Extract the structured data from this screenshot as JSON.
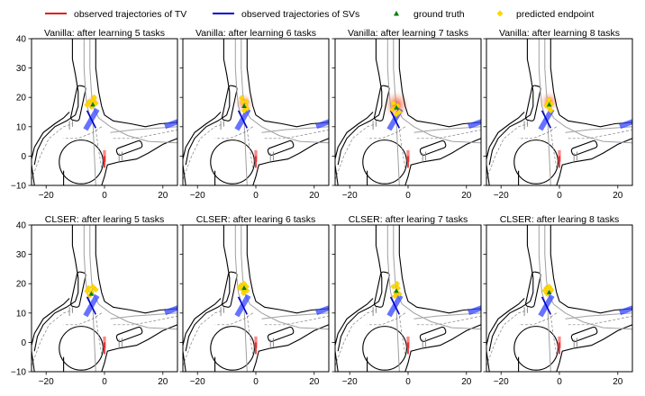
{
  "legend": {
    "items": [
      {
        "label": "observed trajectories of TV",
        "marker": "line",
        "color": "#e41a1c"
      },
      {
        "label": "observed trajectories of SVs",
        "marker": "line",
        "color": "#0000cc"
      },
      {
        "label": "ground truth",
        "marker": "triangle",
        "color": "#008000"
      },
      {
        "label": "predicted endpoint",
        "marker": "diamond",
        "color": "#ffd700"
      }
    ]
  },
  "colors": {
    "road": "#000000",
    "lane": "#a0a0a0",
    "dashed_lane": "#808080",
    "tv_box": "#ff6666",
    "sv_box": "#3344ff",
    "heat": "#ff3300"
  },
  "chart_data": {
    "type": "scatter",
    "xlim": [
      -25,
      25
    ],
    "ylim": [
      -10,
      40
    ],
    "xticks": [
      "-20",
      "0",
      "20"
    ],
    "yticks": [
      "-10",
      "0",
      "10",
      "20",
      "30",
      "40"
    ],
    "tv_vehicle": {
      "center": [
        0,
        0
      ],
      "heading_deg": 90
    },
    "sv_vehicles": [
      {
        "center": [
          -4.5,
          12.5
        ],
        "heading_deg": 60
      },
      {
        "center": [
          24.5,
          11.5
        ],
        "heading_deg": 20
      }
    ],
    "panels": [
      {
        "title": "Vanilla: after learning 5 tasks",
        "ground_truth": [
          -4,
          17.5
        ],
        "predicted": [
          [
            -5.2,
            18.5
          ],
          [
            -4.0,
            19.0
          ],
          [
            -3.0,
            18.0
          ],
          [
            -4.5,
            16.8
          ],
          [
            -6.0,
            17.5
          ],
          [
            -3.5,
            20.0
          ]
        ],
        "heat": 0.25
      },
      {
        "title": "Vanilla: after learning 6 tasks",
        "ground_truth": [
          -4,
          17.0
        ],
        "predicted": [
          [
            -4.5,
            18.5
          ],
          [
            -3.5,
            17.0
          ],
          [
            -4.0,
            15.5
          ],
          [
            -3.0,
            16.2
          ],
          [
            -4.8,
            19.8
          ],
          [
            -3.2,
            18.6
          ]
        ],
        "heat": 0.45
      },
      {
        "title": "Vanilla: after learning 7 tasks",
        "ground_truth": [
          -4,
          16.5
        ],
        "predicted": [
          [
            -5.0,
            18.0
          ],
          [
            -4.2,
            16.5
          ],
          [
            -3.0,
            15.0
          ],
          [
            -4.0,
            14.2
          ],
          [
            -5.4,
            15.8
          ],
          [
            -3.6,
            17.2
          ]
        ],
        "heat": 0.85
      },
      {
        "title": "Vanilla: after learning 8 tasks",
        "ground_truth": [
          -3.5,
          17.5
        ],
        "predicted": [
          [
            -4.0,
            18.0
          ],
          [
            -3.5,
            16.5
          ],
          [
            -3.0,
            15.5
          ],
          [
            -4.5,
            17.2
          ],
          [
            -2.8,
            17.8
          ],
          [
            -3.6,
            19.2
          ]
        ],
        "heat": 0.5
      },
      {
        "title": "CLSER: after learing 5 tasks",
        "ground_truth": [
          -4.5,
          16.5
        ],
        "predicted": [
          [
            -5.5,
            18.5
          ],
          [
            -4.0,
            19.0
          ],
          [
            -3.0,
            18.0
          ],
          [
            -4.5,
            17.2
          ],
          [
            -6.0,
            17.5
          ],
          [
            -5.0,
            16.0
          ]
        ],
        "heat": 0.0
      },
      {
        "title": "CLSER: after learing 6 tasks",
        "ground_truth": [
          -4,
          18.5
        ],
        "predicted": [
          [
            -5.0,
            19.5
          ],
          [
            -4.0,
            20.0
          ],
          [
            -3.2,
            19.0
          ],
          [
            -4.5,
            18.0
          ],
          [
            -5.6,
            18.6
          ],
          [
            -3.0,
            17.6
          ],
          [
            -4.2,
            16.8
          ]
        ],
        "heat": 0.0
      },
      {
        "title": "CLSER: after learing 7 tasks",
        "ground_truth": [
          -4,
          17.5
        ],
        "predicted": [
          [
            -5.0,
            19.0
          ],
          [
            -3.5,
            18.5
          ],
          [
            -4.2,
            17.0
          ],
          [
            -3.0,
            16.5
          ],
          [
            -4.5,
            15.8
          ],
          [
            -3.8,
            20.0
          ]
        ],
        "heat": 0.0
      },
      {
        "title": "CLSER: after learing 8 tasks",
        "ground_truth": [
          -3.5,
          17.0
        ],
        "predicted": [
          [
            -4.5,
            18.5
          ],
          [
            -3.5,
            19.0
          ],
          [
            -3.0,
            17.5
          ],
          [
            -4.2,
            16.5
          ],
          [
            -2.8,
            18.0
          ],
          [
            -5.0,
            17.6
          ]
        ],
        "heat": 0.0
      }
    ]
  }
}
